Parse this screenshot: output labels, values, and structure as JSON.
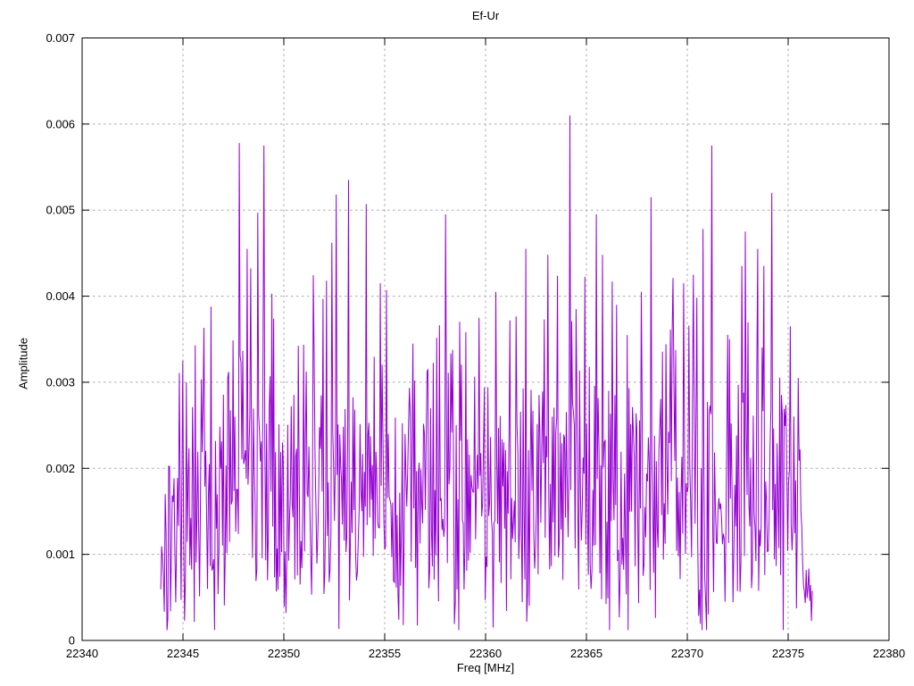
{
  "page": {
    "background": "#ffffff"
  },
  "chart_data": {
    "type": "line",
    "title": "Ef-Ur",
    "xlabel": "Freq [MHz]",
    "ylabel": "Amplitude",
    "xlim": [
      22340,
      22380
    ],
    "ylim": [
      0,
      0.007
    ],
    "grid": true,
    "legend": "none",
    "colors": {
      "signal": "#9400d3",
      "grid": "#a9a9a9",
      "axis": "#000000",
      "text": "#000000"
    },
    "xticks": {
      "values": [
        22340,
        22345,
        22350,
        22355,
        22360,
        22365,
        22370,
        22375,
        22380
      ],
      "labels": [
        "22340",
        "22345",
        "22350",
        "22355",
        "22360",
        "22365",
        "22370",
        "22375",
        "22380"
      ]
    },
    "yticks": {
      "values": [
        0,
        0.001,
        0.002,
        0.003,
        0.004,
        0.005,
        0.006,
        0.007
      ],
      "labels": [
        "0",
        "0.001",
        "0.002",
        "0.003",
        "0.004",
        "0.005",
        "0.006",
        "0.007"
      ]
    },
    "signal": {
      "note": "dense noisy amplitude spectrum occupying 22343.9-22376.2 MHz; noise band roughly 0.0005-0.0035 centred near 0.002 with sporadic spikes to 0.004-0.006; amplitude tapers at both band edges",
      "x_start": 22343.9,
      "x_end": 22376.2,
      "n_points": 740,
      "noise_mean": 0.0019,
      "noise_sd": 0.00078,
      "spike_prob": 0.05,
      "spike_scale": 0.0022,
      "dip_prob": 0.22,
      "dip_scale": 0.45,
      "min": 0.00012,
      "max": 0.0061,
      "seed": 20231114
    },
    "peaks": [
      {
        "x": 22345.0,
        "y": 0.00325
      },
      {
        "x": 22346.4,
        "y": 0.00388
      },
      {
        "x": 22347.8,
        "y": 0.00578
      },
      {
        "x": 22348.2,
        "y": 0.00455
      },
      {
        "x": 22348.7,
        "y": 0.00497
      },
      {
        "x": 22349.0,
        "y": 0.00575
      },
      {
        "x": 22351.5,
        "y": 0.00325
      },
      {
        "x": 22352.1,
        "y": 0.00418
      },
      {
        "x": 22352.4,
        "y": 0.00462
      },
      {
        "x": 22353.2,
        "y": 0.00535
      },
      {
        "x": 22354.1,
        "y": 0.00507
      },
      {
        "x": 22354.8,
        "y": 0.00415
      },
      {
        "x": 22355.1,
        "y": 0.00407
      },
      {
        "x": 22356.4,
        "y": 0.00345
      },
      {
        "x": 22358.0,
        "y": 0.00495
      },
      {
        "x": 22359.7,
        "y": 0.00375
      },
      {
        "x": 22360.5,
        "y": 0.00405
      },
      {
        "x": 22361.2,
        "y": 0.00372
      },
      {
        "x": 22362.0,
        "y": 0.00455
      },
      {
        "x": 22362.9,
        "y": 0.00373
      },
      {
        "x": 22363.1,
        "y": 0.00448
      },
      {
        "x": 22364.2,
        "y": 0.0061
      },
      {
        "x": 22364.5,
        "y": 0.00385
      },
      {
        "x": 22365.5,
        "y": 0.00495
      },
      {
        "x": 22365.8,
        "y": 0.00448
      },
      {
        "x": 22366.3,
        "y": 0.00417
      },
      {
        "x": 22367.7,
        "y": 0.00405
      },
      {
        "x": 22368.2,
        "y": 0.00515
      },
      {
        "x": 22369.3,
        "y": 0.00421
      },
      {
        "x": 22369.8,
        "y": 0.00415
      },
      {
        "x": 22370.3,
        "y": 0.00425
      },
      {
        "x": 22370.8,
        "y": 0.00478
      },
      {
        "x": 22371.2,
        "y": 0.00575
      },
      {
        "x": 22372.0,
        "y": 0.00355
      },
      {
        "x": 22372.7,
        "y": 0.00435
      },
      {
        "x": 22372.9,
        "y": 0.00475
      },
      {
        "x": 22373.5,
        "y": 0.00455
      },
      {
        "x": 22373.8,
        "y": 0.00435
      },
      {
        "x": 22374.2,
        "y": 0.0052
      },
      {
        "x": 22375.1,
        "y": 0.00365
      },
      {
        "x": 22375.5,
        "y": 0.00305
      }
    ]
  }
}
